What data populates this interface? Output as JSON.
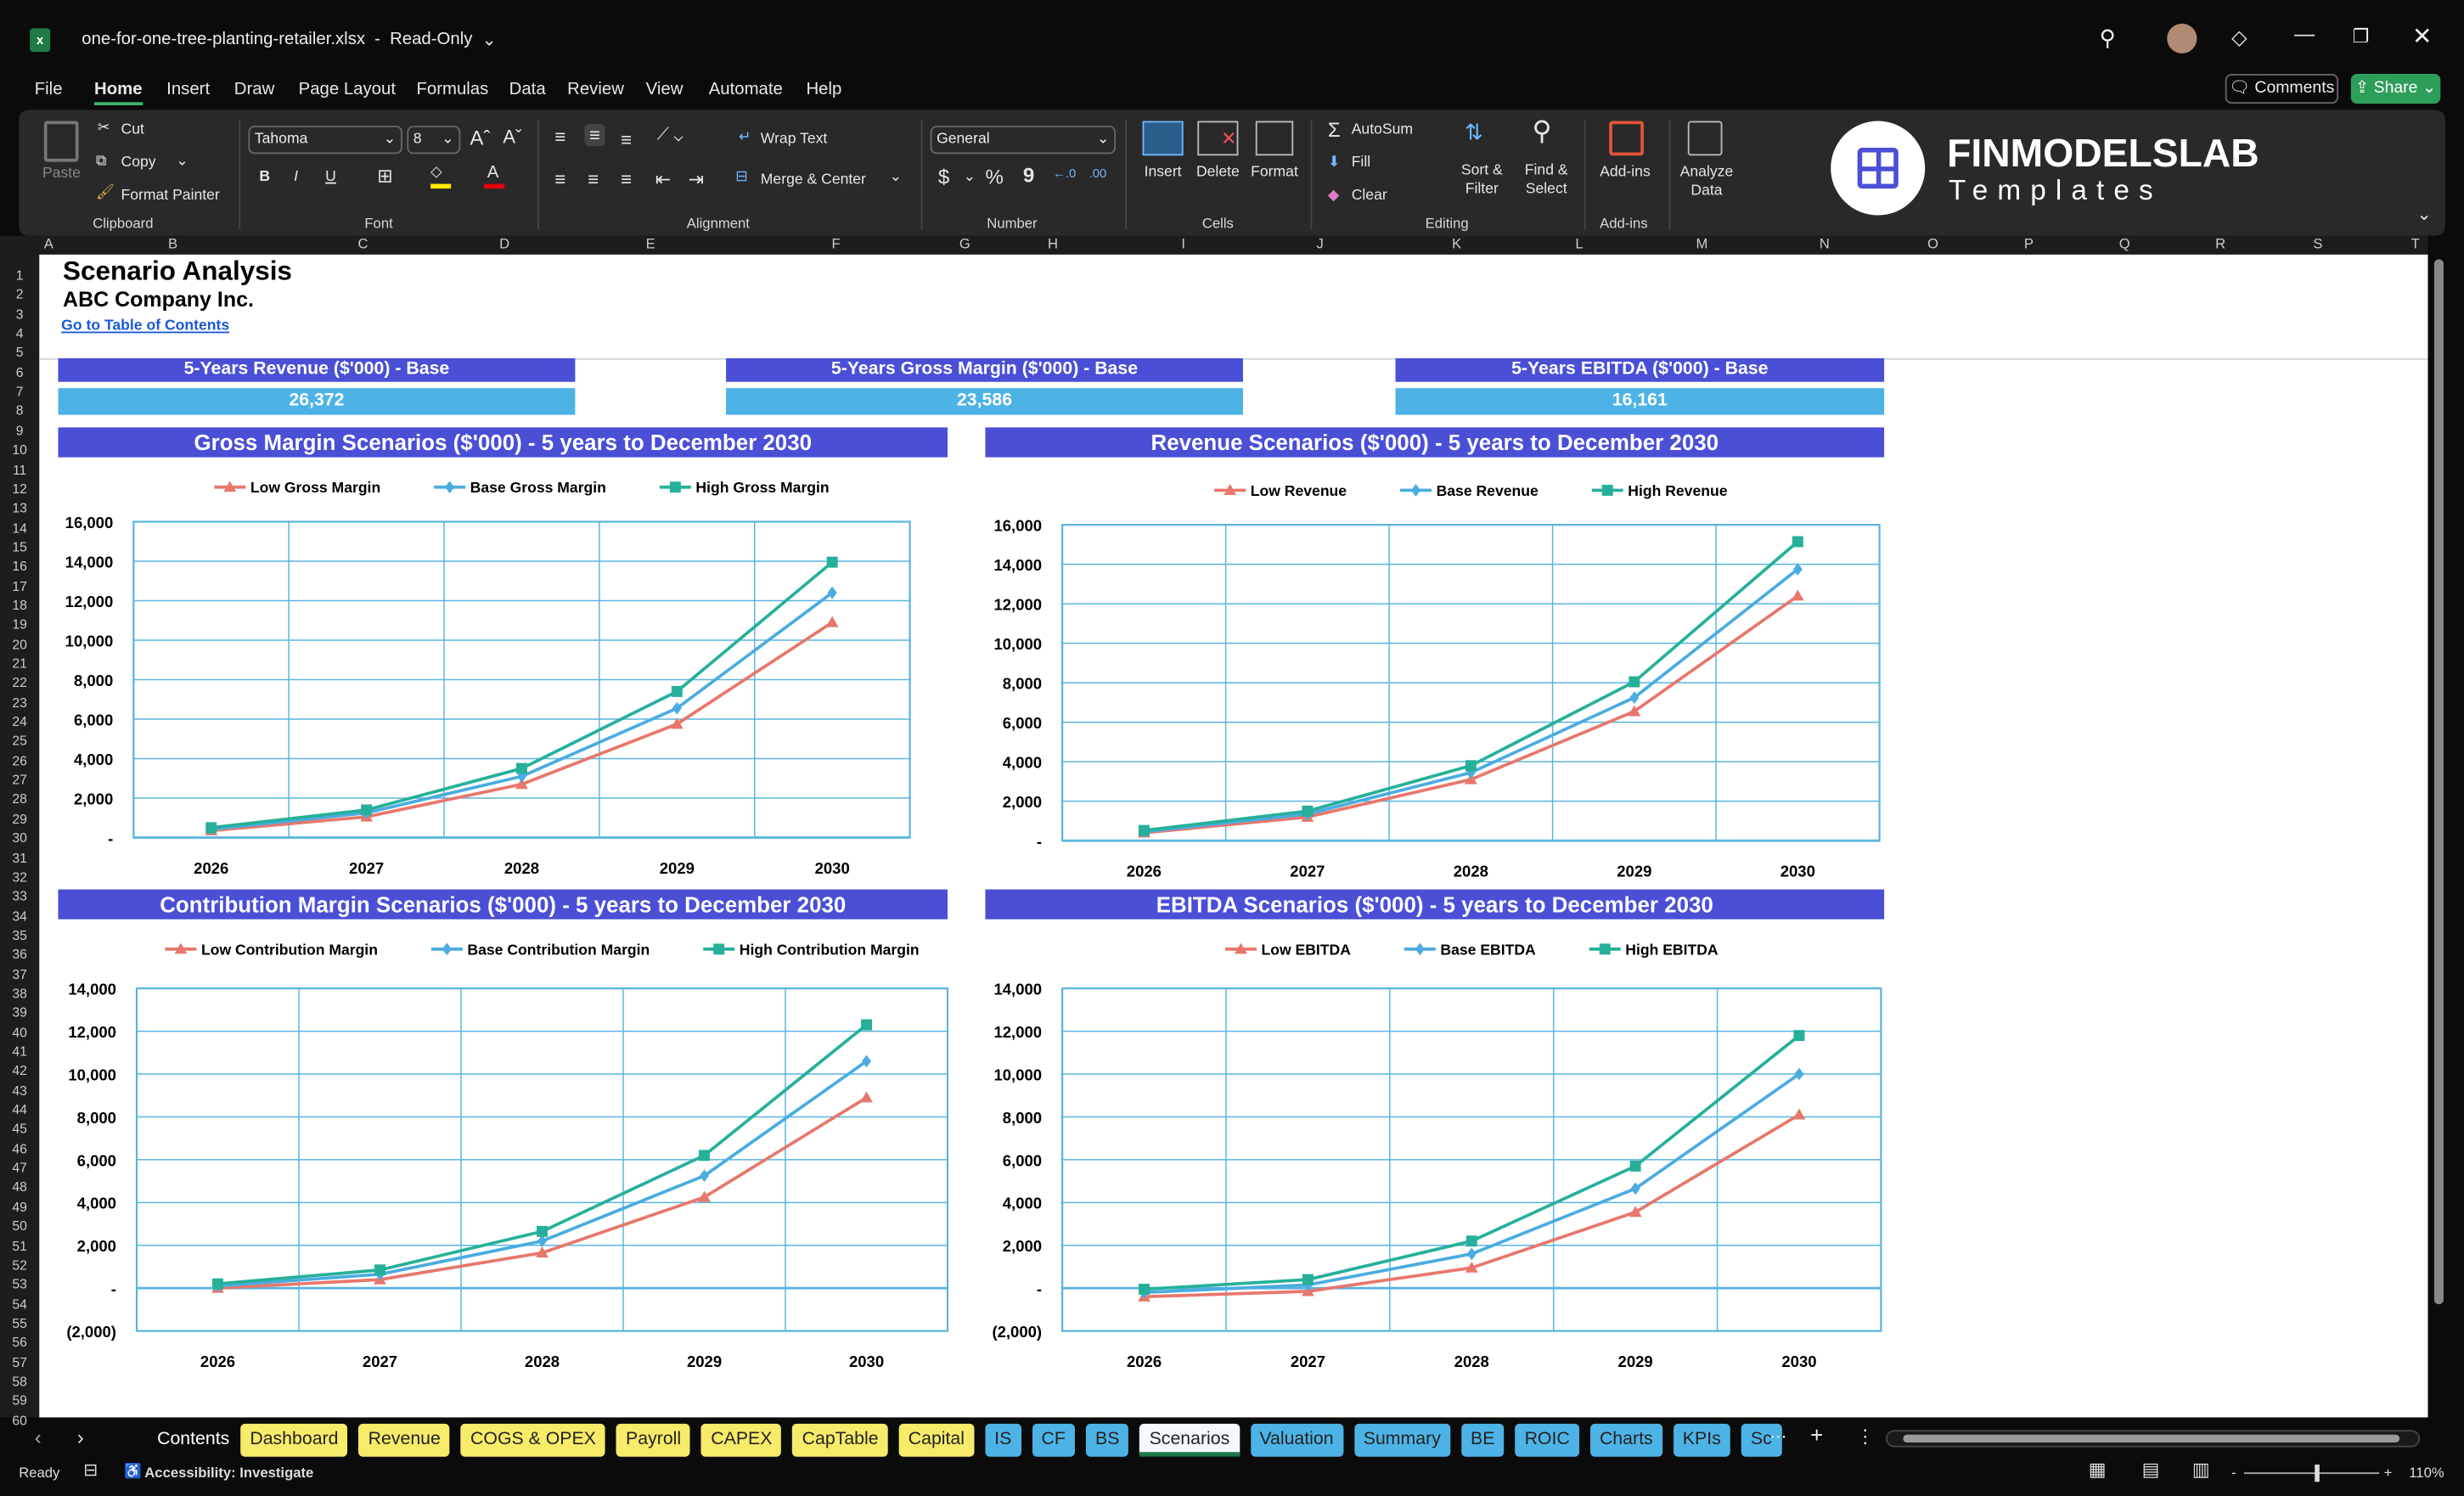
{
  "window": {
    "title": "one-for-one-tree-planting-retailer.xlsx",
    "mode": "Read-Only"
  },
  "menu": [
    "File",
    "Home",
    "Insert",
    "Draw",
    "Page Layout",
    "Formulas",
    "Data",
    "Review",
    "View",
    "Automate",
    "Help"
  ],
  "menu_active": "Home",
  "header_buttons": {
    "comments": "Comments",
    "share": "Share"
  },
  "ribbon": {
    "clipboard": {
      "paste": "Paste",
      "cut": "Cut",
      "copy": "Copy",
      "format_painter": "Format Painter",
      "label": "Clipboard"
    },
    "font": {
      "family": "Tahoma",
      "size": "8",
      "label": "Font",
      "bold": "B",
      "italic": "I",
      "underline": "U"
    },
    "alignment": {
      "wrap_text": "Wrap Text",
      "merge_center": "Merge & Center",
      "label": "Alignment"
    },
    "number": {
      "format": "General",
      "currency": "$",
      "percent": "%",
      "comma": "9",
      "label": "Number"
    },
    "cells": {
      "insert": "Insert",
      "delete": "Delete",
      "format": "Format",
      "label": "Cells"
    },
    "editing": {
      "autosum": "AutoSum",
      "fill": "Fill",
      "clear": "Clear",
      "sort_filter": "Sort & Filter",
      "find_select": "Find & Select",
      "label": "Editing"
    },
    "addins": {
      "addins": "Add-ins",
      "label": "Add-ins"
    },
    "analyze": {
      "label": "Analyze Data"
    },
    "logo": {
      "brand": "FINMODELSLAB",
      "sub": "Templates"
    }
  },
  "columns": [
    "A",
    "B",
    "C",
    "D",
    "E",
    "F",
    "G",
    "H",
    "I",
    "J",
    "K",
    "L",
    "M",
    "N",
    "O",
    "P",
    "Q",
    "R",
    "S",
    "T"
  ],
  "rows_first": 1,
  "rows_last": 60,
  "sheet": {
    "title": "Scenario Analysis",
    "company": "ABC Company Inc.",
    "toc_link": "Go to Table of Contents",
    "kpis": [
      {
        "label": "5-Years Revenue ($'000) - Base",
        "value": "26,372"
      },
      {
        "label": "5-Years Gross Margin ($'000) - Base",
        "value": "23,586"
      },
      {
        "label": "5-Years EBITDA ($'000) - Base",
        "value": "16,161"
      }
    ]
  },
  "colors": {
    "low": "#E8776B",
    "base": "#4AACE0",
    "high": "#26B09A",
    "title_bar": "#4A4FD6",
    "grid": "#5AB4E0"
  },
  "chart_data": [
    {
      "type": "line",
      "title": "Gross Margin Scenarios ($'000) - 5 years to December 2030",
      "categories": [
        "2026",
        "2027",
        "2028",
        "2029",
        "2030"
      ],
      "ylim": [
        0,
        16000
      ],
      "yticks": [
        0,
        2000,
        4000,
        6000,
        8000,
        10000,
        12000,
        14000,
        16000
      ],
      "ytick_labels": [
        "-",
        "2,000",
        "4,000",
        "6,000",
        "8,000",
        "10,000",
        "12,000",
        "14,000",
        "16,000"
      ],
      "grid": true,
      "legend": "top",
      "series": [
        {
          "name": "Low Gross Margin",
          "values": [
            350,
            1050,
            2700,
            5750,
            10900
          ]
        },
        {
          "name": "Base Gross Margin",
          "values": [
            420,
            1250,
            3100,
            6550,
            12400
          ]
        },
        {
          "name": "High Gross Margin",
          "values": [
            500,
            1400,
            3500,
            7400,
            13950
          ]
        }
      ]
    },
    {
      "type": "line",
      "title": "Revenue Scenarios ($'000) - 5 years to December 2030",
      "categories": [
        "2026",
        "2027",
        "2028",
        "2029",
        "2030"
      ],
      "ylim": [
        0,
        16000
      ],
      "yticks": [
        0,
        2000,
        4000,
        6000,
        8000,
        10000,
        12000,
        14000,
        16000
      ],
      "ytick_labels": [
        "-",
        "2,000",
        "4,000",
        "6,000",
        "8,000",
        "10,000",
        "12,000",
        "14,000",
        "16,000"
      ],
      "grid": true,
      "legend": "top",
      "series": [
        {
          "name": "Low Revenue",
          "values": [
            400,
            1200,
            3100,
            6550,
            12400
          ]
        },
        {
          "name": "Base Revenue",
          "values": [
            450,
            1350,
            3450,
            7250,
            13750
          ]
        },
        {
          "name": "High Revenue",
          "values": [
            520,
            1500,
            3800,
            8050,
            15150
          ]
        }
      ]
    },
    {
      "type": "line",
      "title": "Contribution Margin Scenarios ($'000) - 5 years to December 2030",
      "categories": [
        "2026",
        "2027",
        "2028",
        "2029",
        "2030"
      ],
      "ylim": [
        -2000,
        14000
      ],
      "yticks": [
        -2000,
        0,
        2000,
        4000,
        6000,
        8000,
        10000,
        12000,
        14000
      ],
      "ytick_labels": [
        "(2,000)",
        "-",
        "2,000",
        "4,000",
        "6,000",
        "8,000",
        "10,000",
        "12,000",
        "14,000"
      ],
      "grid": true,
      "legend": "top",
      "series": [
        {
          "name": "Low Contribution Margin",
          "values": [
            0,
            400,
            1650,
            4250,
            8900
          ]
        },
        {
          "name": "Base Contribution Margin",
          "values": [
            100,
            650,
            2200,
            5250,
            10600
          ]
        },
        {
          "name": "High Contribution Margin",
          "values": [
            200,
            850,
            2650,
            6200,
            12300
          ]
        }
      ]
    },
    {
      "type": "line",
      "title": "EBITDA Scenarios ($'000) - 5 years to December 2030",
      "categories": [
        "2026",
        "2027",
        "2028",
        "2029",
        "2030"
      ],
      "ylim": [
        -2000,
        14000
      ],
      "yticks": [
        -2000,
        0,
        2000,
        4000,
        6000,
        8000,
        10000,
        12000,
        14000
      ],
      "ytick_labels": [
        "(2,000)",
        "-",
        "2,000",
        "4,000",
        "6,000",
        "8,000",
        "10,000",
        "12,000",
        "14,000"
      ],
      "grid": true,
      "legend": "top",
      "series": [
        {
          "name": "Low EBITDA",
          "values": [
            -400,
            -150,
            950,
            3550,
            8100
          ]
        },
        {
          "name": "Base EBITDA",
          "values": [
            -200,
            150,
            1600,
            4650,
            10000
          ]
        },
        {
          "name": "High EBITDA",
          "values": [
            -50,
            400,
            2200,
            5700,
            11800
          ]
        }
      ]
    }
  ],
  "tabs": [
    {
      "label": "Contents",
      "style": "n"
    },
    {
      "label": "Dashboard",
      "style": "y"
    },
    {
      "label": "Revenue",
      "style": "y"
    },
    {
      "label": "COGS & OPEX",
      "style": "y"
    },
    {
      "label": "Payroll",
      "style": "y"
    },
    {
      "label": "CAPEX",
      "style": "y"
    },
    {
      "label": "CapTable",
      "style": "y"
    },
    {
      "label": "Capital",
      "style": "y"
    },
    {
      "label": "IS",
      "style": "b"
    },
    {
      "label": "CF",
      "style": "b"
    },
    {
      "label": "BS",
      "style": "b"
    },
    {
      "label": "Scenarios",
      "style": "act"
    },
    {
      "label": "Valuation",
      "style": "b"
    },
    {
      "label": "Summary",
      "style": "b"
    },
    {
      "label": "BE",
      "style": "b"
    },
    {
      "label": "ROIC",
      "style": "b"
    },
    {
      "label": "Charts",
      "style": "b"
    },
    {
      "label": "KPIs",
      "style": "b"
    },
    {
      "label": "Sc",
      "style": "b"
    }
  ],
  "status": {
    "ready": "Ready",
    "accessibility": "Accessibility: Investigate",
    "zoom": "110%"
  }
}
